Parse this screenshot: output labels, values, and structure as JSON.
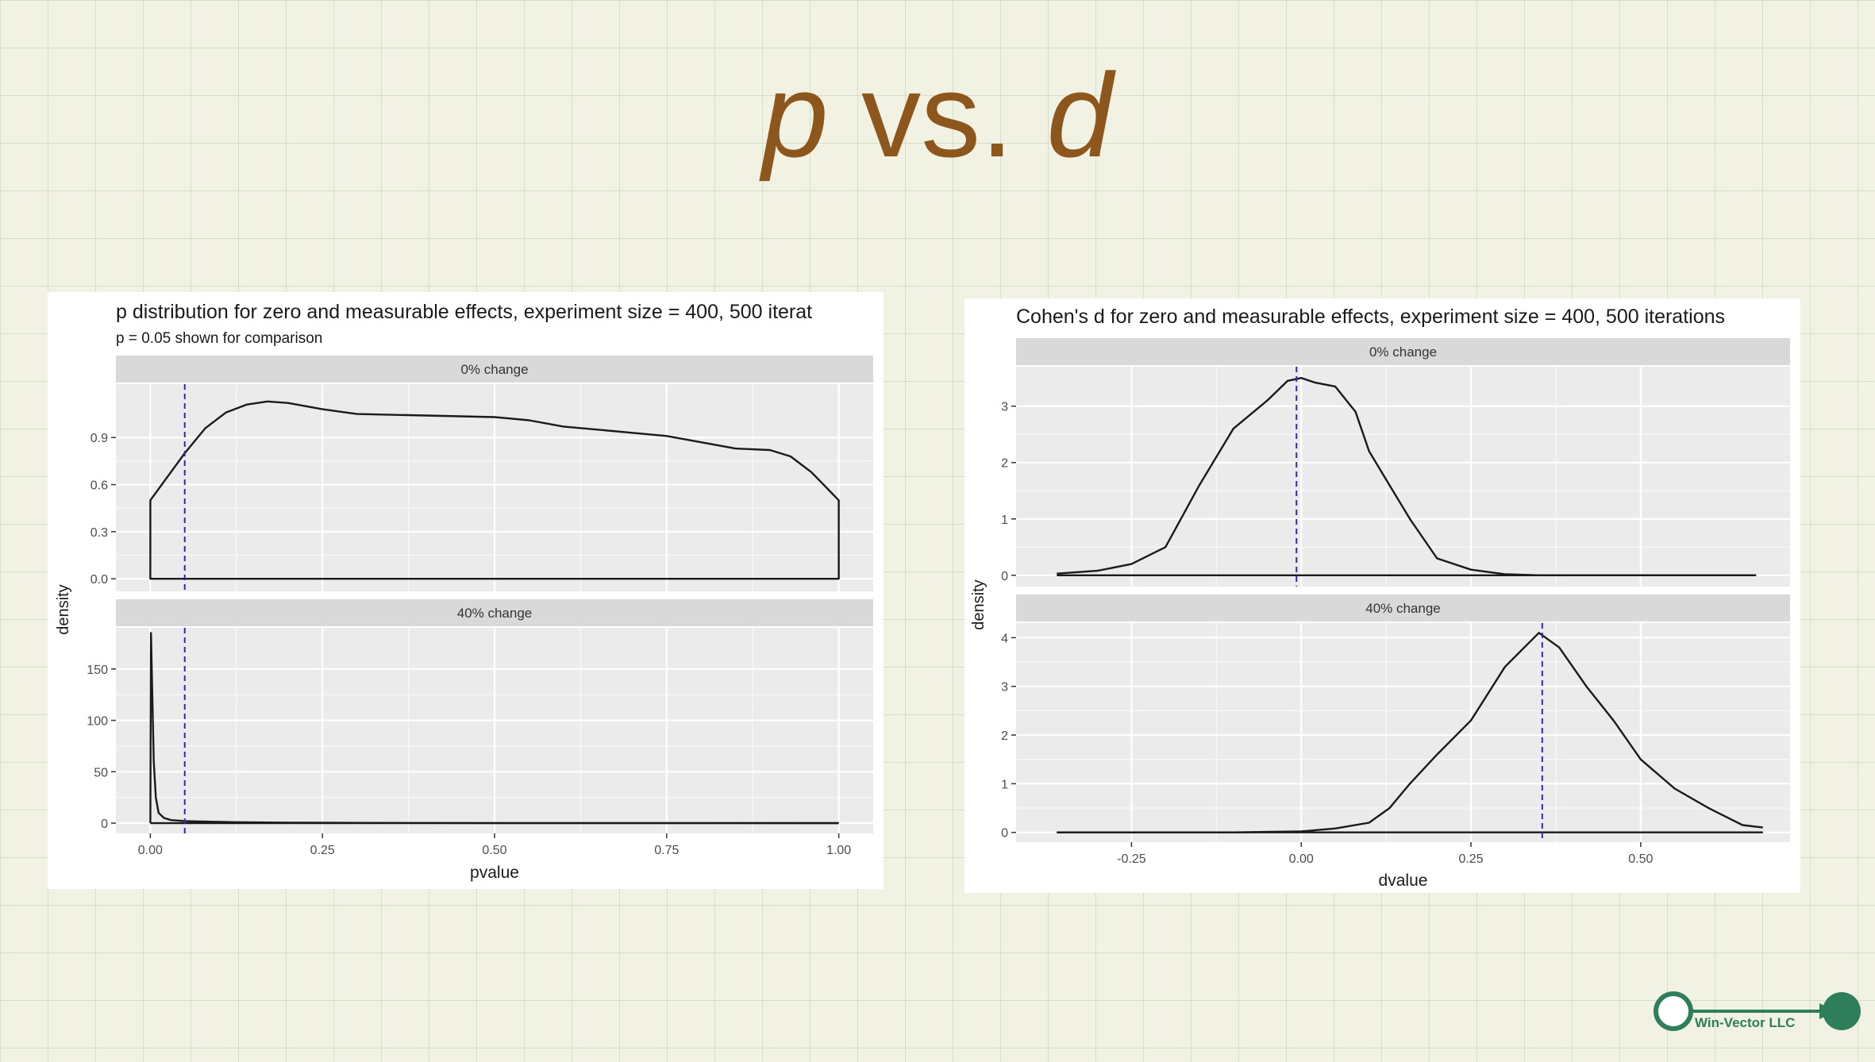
{
  "slide": {
    "title_p": "p",
    "title_vs": " vs. ",
    "title_d": "d",
    "logo_text": "Win-Vector LLC"
  },
  "colors": {
    "title": "#8d561c",
    "plot_bg": "#ebebeb",
    "strip_bg": "#d9d9d9",
    "grid": "#ffffff",
    "curve": "#1a1a1a",
    "reference_line": "#2b2bb3",
    "logo": "#2e7d5b"
  },
  "chart_data": [
    {
      "type": "line",
      "title": "p distribution for zero and measurable effects, experiment size = 400, 500 iterat",
      "subtitle": "p = 0.05 shown for comparison",
      "xlabel": "pvalue",
      "ylabel": "density",
      "xlim": [
        -0.05,
        1.05
      ],
      "x_ticks": [
        0,
        0.25,
        0.5,
        0.75,
        1.0
      ],
      "x_tick_labels": [
        "0.00",
        "0.25",
        "0.50",
        "0.75",
        "1.00"
      ],
      "grid": true,
      "facets": [
        {
          "label": "0% change",
          "ylim": [
            -0.08,
            1.24
          ],
          "y_ticks": [
            0,
            0.3,
            0.6,
            0.9
          ],
          "y_tick_labels": [
            "0.0",
            "0.3",
            "0.6",
            "0.9"
          ],
          "reference_x": 0.05,
          "x": [
            0,
            0.02,
            0.05,
            0.08,
            0.11,
            0.14,
            0.17,
            0.2,
            0.25,
            0.3,
            0.4,
            0.5,
            0.55,
            0.6,
            0.65,
            0.7,
            0.75,
            0.8,
            0.85,
            0.9,
            0.93,
            0.96,
            0.98,
            1.0
          ],
          "y": [
            0.5,
            0.62,
            0.8,
            0.96,
            1.06,
            1.11,
            1.13,
            1.12,
            1.08,
            1.05,
            1.04,
            1.03,
            1.01,
            0.97,
            0.95,
            0.93,
            0.91,
            0.87,
            0.83,
            0.82,
            0.78,
            0.68,
            0.59,
            0.5
          ],
          "closed_at_zero": true
        },
        {
          "label": "40% change",
          "ylim": [
            -10,
            190
          ],
          "y_ticks": [
            0,
            50,
            100,
            150
          ],
          "y_tick_labels": [
            "0",
            "50",
            "100",
            "150"
          ],
          "reference_x": 0.05,
          "x": [
            0,
            0.001,
            0.003,
            0.005,
            0.008,
            0.012,
            0.02,
            0.03,
            0.05,
            0.08,
            0.12,
            0.2,
            0.3,
            0.5,
            1.0
          ],
          "y": [
            0,
            185,
            120,
            60,
            25,
            10,
            5,
            3,
            2,
            1.5,
            1,
            0.5,
            0.3,
            0.1,
            0
          ],
          "closed_at_zero": false
        }
      ]
    },
    {
      "type": "line",
      "title": "Cohen's d for zero and measurable effects, experiment size = 400, 500 iterations",
      "xlabel": "dvalue",
      "ylabel": "density",
      "xlim": [
        -0.42,
        0.72
      ],
      "x_ticks": [
        -0.25,
        0,
        0.25,
        0.5
      ],
      "x_tick_labels": [
        "-0.25",
        "0.00",
        "0.25",
        "0.50"
      ],
      "grid": true,
      "facets": [
        {
          "label": "0% change",
          "ylim": [
            -0.2,
            3.7
          ],
          "y_ticks": [
            0,
            1,
            2,
            3
          ],
          "y_tick_labels": [
            "0",
            "1",
            "2",
            "3"
          ],
          "reference_x": -0.007,
          "x": [
            -0.36,
            -0.3,
            -0.25,
            -0.2,
            -0.15,
            -0.1,
            -0.05,
            -0.02,
            0.0,
            0.02,
            0.05,
            0.08,
            0.1,
            0.13,
            0.16,
            0.2,
            0.25,
            0.3,
            0.35,
            0.5,
            0.67
          ],
          "y": [
            0.03,
            0.08,
            0.2,
            0.5,
            1.6,
            2.6,
            3.1,
            3.45,
            3.5,
            3.42,
            3.35,
            2.9,
            2.2,
            1.6,
            1.0,
            0.3,
            0.1,
            0.02,
            0.0,
            0.0,
            0.0
          ],
          "closed_at_zero": false
        },
        {
          "label": "40% change",
          "ylim": [
            -0.2,
            4.3
          ],
          "y_ticks": [
            0,
            1,
            2,
            3,
            4
          ],
          "y_tick_labels": [
            "0",
            "1",
            "2",
            "3",
            "4"
          ],
          "reference_x": 0.355,
          "x": [
            -0.36,
            -0.1,
            0.0,
            0.05,
            0.1,
            0.13,
            0.16,
            0.2,
            0.25,
            0.3,
            0.35,
            0.38,
            0.42,
            0.46,
            0.5,
            0.55,
            0.6,
            0.65,
            0.68
          ],
          "y": [
            0.0,
            0.0,
            0.02,
            0.08,
            0.2,
            0.5,
            1.0,
            1.6,
            2.3,
            3.4,
            4.1,
            3.8,
            3.0,
            2.3,
            1.5,
            0.9,
            0.5,
            0.15,
            0.1
          ],
          "closed_at_zero": false
        }
      ]
    }
  ]
}
